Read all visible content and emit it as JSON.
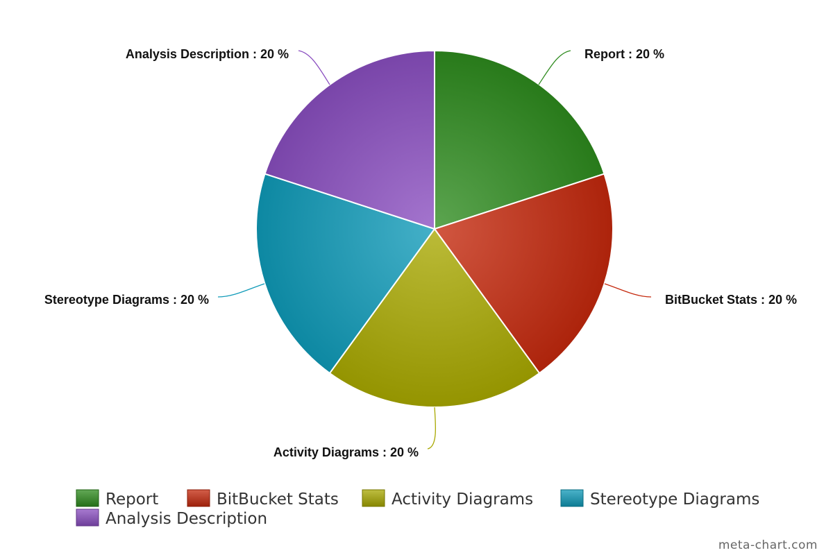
{
  "chart_data": {
    "type": "pie",
    "categories": [
      "Report",
      "BitBucket Stats",
      "Activity Diagrams",
      "Stereotype Diagrams",
      "Analysis Description"
    ],
    "values": [
      20,
      20,
      20,
      20,
      20
    ],
    "data_labels": [
      "Report : 20 %",
      "BitBucket Stats : 20 %",
      "Activity Diagrams : 20 %",
      "Stereotype Diagrams : 20 %",
      "Analysis Description : 20 %"
    ],
    "colors": [
      "#2e8b1e",
      "#c4280c",
      "#a8a800",
      "#0f9ab8",
      "#8a4ec0"
    ],
    "legend": {
      "placement": "bottom",
      "entries": [
        "Report",
        "BitBucket Stats",
        "Activity Diagrams",
        "Stereotype Diagrams",
        "Analysis Description"
      ]
    }
  },
  "credit": "meta-chart.com"
}
